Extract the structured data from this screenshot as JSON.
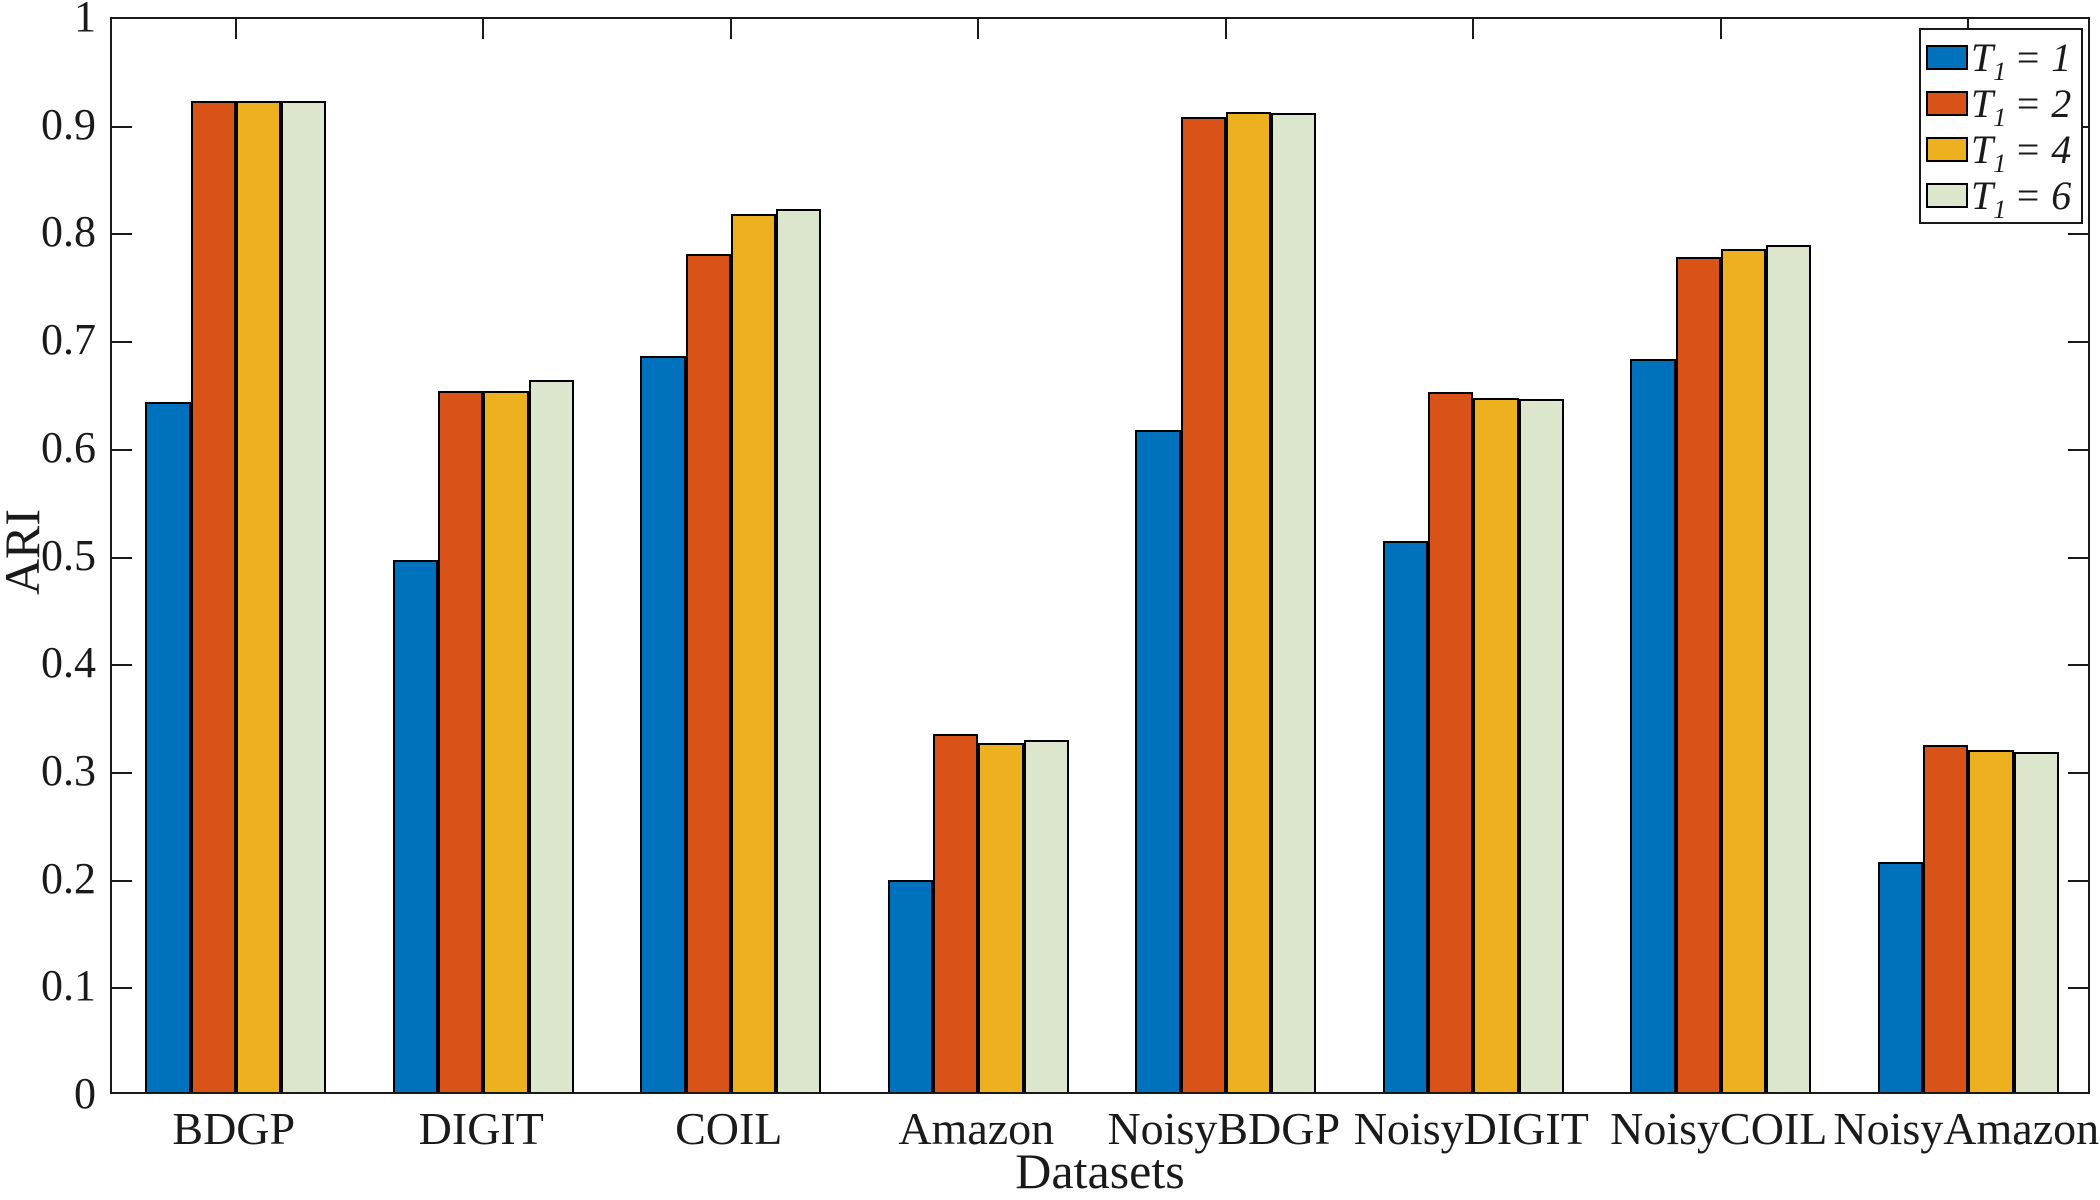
{
  "chart_data": {
    "type": "bar",
    "title": "",
    "xlabel": "Datasets",
    "ylabel": "ARI",
    "ylim": [
      0,
      1
    ],
    "yticks": [
      0,
      0.1,
      0.2,
      0.3,
      0.4,
      0.5,
      0.6,
      0.7,
      0.8,
      0.9,
      1
    ],
    "ytick_labels": [
      "0",
      "0.1",
      "0.2",
      "0.3",
      "0.4",
      "0.5",
      "0.6",
      "0.7",
      "0.8",
      "0.9",
      "1"
    ],
    "categories": [
      "BDGP",
      "DIGIT",
      "COIL",
      "Amazon",
      "NoisyBDGP",
      "NoisyDIGIT",
      "NoisyCOIL",
      "NoisyAmazon"
    ],
    "series": [
      {
        "name": "T1 = 1",
        "label": {
          "sym": "T",
          "sub": "1",
          "rhs": "= 1"
        },
        "color": "#0072BD",
        "values": [
          0.641,
          0.494,
          0.683,
          0.197,
          0.615,
          0.512,
          0.681,
          0.214
        ]
      },
      {
        "name": "T1 = 2",
        "label": {
          "sym": "T",
          "sub": "1",
          "rhs": "= 2"
        },
        "color": "#D95319",
        "values": [
          0.92,
          0.651,
          0.778,
          0.332,
          0.905,
          0.65,
          0.775,
          0.322
        ]
      },
      {
        "name": "T1 = 4",
        "label": {
          "sym": "T",
          "sub": "1",
          "rhs": "= 4"
        },
        "color": "#EDB120",
        "values": [
          0.92,
          0.651,
          0.815,
          0.324,
          0.91,
          0.644,
          0.783,
          0.318
        ]
      },
      {
        "name": "T1 = 6",
        "label": {
          "sym": "T",
          "sub": "1",
          "rhs": "= 6"
        },
        "color": "#DCE6CD",
        "values": [
          0.92,
          0.661,
          0.82,
          0.327,
          0.909,
          0.643,
          0.786,
          0.316
        ]
      }
    ],
    "grid": false,
    "legend_position": "top-right",
    "colors": {
      "axis": "#1a1a1a",
      "bar_edge": "#000000",
      "background": "#ffffff"
    }
  }
}
